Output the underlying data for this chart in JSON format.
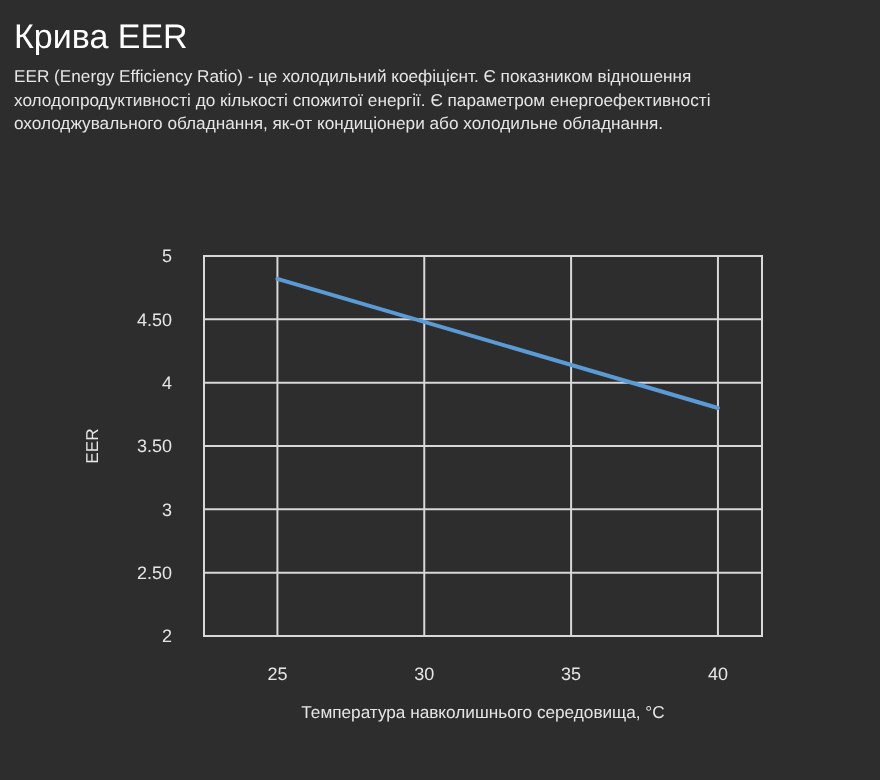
{
  "chart_data": {
    "type": "line",
    "title": "Крива EER",
    "subtitle": "EER (Energy Efficiency Ratio) - це холодильний коефіцієнт. Є показником відношення\nхолодопродуктивності до кількості спожитої енергії. Є параметром енергоефективності\nохолоджувального обладнання, як-от кондиціонери або холодильне обладнання.",
    "xlabel": "Температура навколишнього середовища, °C",
    "ylabel": "EER",
    "x": [
      25,
      40
    ],
    "series": [
      {
        "color": "#5b9bd5",
        "values": [
          4.82,
          3.8
        ]
      }
    ],
    "xlim": [
      22.5,
      41.5
    ],
    "xticks": [
      25,
      30,
      35,
      40
    ],
    "ylim": [
      2,
      5
    ],
    "yticks": [
      2,
      {
        "value": 2.5,
        "label": "2.50"
      },
      3,
      {
        "value": 3.5,
        "label": "3.50"
      },
      4,
      {
        "value": 4.5,
        "label": "4.50"
      },
      5
    ],
    "grid": true,
    "marker": "none",
    "line_style": "solid"
  }
}
